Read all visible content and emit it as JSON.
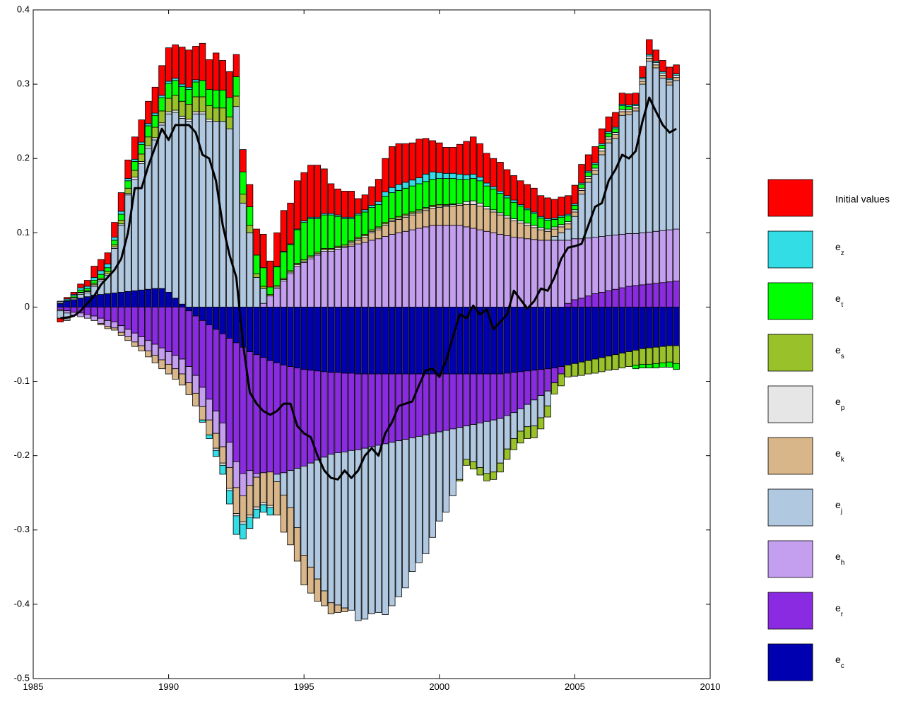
{
  "chart_data": {
    "type": "stacked-bar-line",
    "x": [
      1986,
      1986.25,
      1986.5,
      1986.75,
      1987,
      1987.25,
      1987.5,
      1987.75,
      1988,
      1988.25,
      1988.5,
      1988.75,
      1989,
      1989.25,
      1989.5,
      1989.75,
      1990,
      1990.25,
      1990.5,
      1990.75,
      1991,
      1991.25,
      1991.5,
      1991.75,
      1992,
      1992.25,
      1992.5,
      1992.75,
      1993,
      1993.25,
      1993.5,
      1993.75,
      1994,
      1994.25,
      1994.5,
      1994.75,
      1995,
      1995.25,
      1995.5,
      1995.75,
      1996,
      1996.25,
      1996.5,
      1996.75,
      1997,
      1997.25,
      1997.5,
      1997.75,
      1998,
      1998.25,
      1998.5,
      1998.75,
      1999,
      1999.25,
      1999.5,
      1999.75,
      2000,
      2000.25,
      2000.5,
      2000.75,
      2001,
      2001.25,
      2001.5,
      2001.75,
      2002,
      2002.25,
      2002.5,
      2002.75,
      2003,
      2003.25,
      2003.5,
      2003.75,
      2004,
      2004.25,
      2004.5,
      2004.75,
      2005,
      2005.25,
      2005.5,
      2005.75,
      2006,
      2006.25,
      2006.5,
      2006.75,
      2007,
      2007.25,
      2007.5,
      2007.75,
      2008,
      2008.25,
      2008.5,
      2008.75
    ],
    "series": [
      {
        "name": "Initial values",
        "color": "#ff0000",
        "values": [
          -0.005,
          0.002,
          0.003,
          0.005,
          0.008,
          0.015,
          0.015,
          0.015,
          0.02,
          0.025,
          0.025,
          0.03,
          0.03,
          0.03,
          0.035,
          0.04,
          0.045,
          0.045,
          0.05,
          0.05,
          0.045,
          0.05,
          0.04,
          0.05,
          0.04,
          0.035,
          0.03,
          0.03,
          0.03,
          0.035,
          0.045,
          0.035,
          0.045,
          0.055,
          0.055,
          0.065,
          0.065,
          0.07,
          0.07,
          0.06,
          0.04,
          0.035,
          0.035,
          0.035,
          0.02,
          0.02,
          0.025,
          0.03,
          0.045,
          0.055,
          0.055,
          0.052,
          0.05,
          0.052,
          0.048,
          0.042,
          0.04,
          0.035,
          0.035,
          0.04,
          0.045,
          0.05,
          0.045,
          0.04,
          0.038,
          0.039,
          0.035,
          0.033,
          0.032,
          0.032,
          0.032,
          0.028,
          0.028,
          0.025,
          0.025,
          0.025,
          0.025,
          0.025,
          0.022,
          0.022,
          0.02,
          0.02,
          0.02,
          0.015,
          0.015,
          0.015,
          0.015,
          0.02,
          0.015,
          0.015,
          0.015,
          0.012
        ]
      },
      {
        "name": "ez",
        "color": "#33dde6",
        "values": [
          0.001,
          0.002,
          0.002,
          0.003,
          0.003,
          0.004,
          0.005,
          0.005,
          0.004,
          0.004,
          0.003,
          0.003,
          0.003,
          0.003,
          0.003,
          0.003,
          0.003,
          0.003,
          0.003,
          0.003,
          0.003,
          -0.003,
          -0.005,
          -0.008,
          -0.012,
          -0.018,
          -0.025,
          -0.02,
          -0.015,
          -0.012,
          -0.01,
          -0.01,
          0.001,
          0.001,
          0.001,
          0.001,
          0.002,
          0.002,
          0.002,
          0.002,
          0.002,
          0.002,
          0.002,
          0.002,
          0.002,
          0.003,
          0.003,
          0.004,
          0.006,
          0.007,
          0.008,
          0.008,
          0.008,
          0.008,
          0.01,
          0.01,
          0.008,
          0.007,
          0.007,
          0.007,
          0.006,
          0.006,
          0.005,
          0.004,
          0.003,
          0.003,
          0.003,
          0.003,
          0.002,
          0.002,
          0.002,
          0.002,
          0.002,
          0.002,
          0.002,
          0.002,
          0.002,
          0.002,
          0.002,
          0.002,
          0.002,
          0.002,
          0.002,
          0.002,
          0.002,
          0.002,
          0.002,
          0.002,
          0.002,
          0.002,
          0.002,
          0.002
        ]
      },
      {
        "name": "eτ",
        "color": "#00ff00",
        "values": [
          0,
          0.001,
          0.002,
          0.003,
          0.003,
          0.004,
          0.005,
          0.005,
          0.006,
          0.008,
          0.01,
          0.012,
          0.013,
          0.015,
          0.016,
          0.018,
          0.02,
          0.02,
          0.02,
          0.02,
          0.02,
          0.022,
          0.022,
          0.024,
          0.024,
          0.026,
          0.026,
          0.03,
          0.025,
          0.025,
          0.025,
          0.01,
          0.025,
          0.035,
          0.035,
          0.045,
          0.05,
          0.05,
          0.045,
          0.045,
          0.045,
          0.04,
          0.035,
          0.03,
          0.03,
          0.03,
          0.03,
          0.03,
          0.035,
          0.035,
          0.035,
          0.035,
          0.035,
          0.035,
          0.035,
          0.035,
          0.035,
          0.035,
          0.034,
          0.033,
          0.03,
          0.03,
          0.03,
          0.028,
          0.028,
          0.026,
          0.024,
          0.022,
          0.02,
          0.018,
          0.016,
          0.013,
          0.012,
          0.01,
          0.01,
          0.008,
          0.006,
          0.005,
          0.005,
          0.005,
          0.005,
          0.005,
          0.005,
          0.005,
          0.004,
          -0.005,
          -0.005,
          -0.005,
          -0.006,
          -0.006,
          -0.007,
          -0.008
        ]
      },
      {
        "name": "es",
        "color": "#99c22a",
        "values": [
          0,
          0,
          0.001,
          0.001,
          0.001,
          0.002,
          0.002,
          0.003,
          0.003,
          0.005,
          0.007,
          0.009,
          0.01,
          0.012,
          0.014,
          0.016,
          0.018,
          0.02,
          0.02,
          0.02,
          0.02,
          0.02,
          0.018,
          0.018,
          0.018,
          0.016,
          0.014,
          0.012,
          0.01,
          0.005,
          0.003,
          0.002,
          0.002,
          0.002,
          0.002,
          0.002,
          0.002,
          0.002,
          0.002,
          0.002,
          0.002,
          0.002,
          0.002,
          0.002,
          0.002,
          0.002,
          0.002,
          0.002,
          0.002,
          0.002,
          0.002,
          0.002,
          0.002,
          0.002,
          0.002,
          0.002,
          0.002,
          0.001,
          0.001,
          -0.002,
          -0.008,
          -0.01,
          -0.01,
          -0.01,
          -0.01,
          -0.012,
          -0.014,
          -0.015,
          -0.016,
          -0.016,
          -0.016,
          -0.015,
          -0.015,
          -0.015,
          -0.016,
          -0.016,
          -0.017,
          -0.018,
          -0.018,
          -0.019,
          -0.019,
          -0.019,
          -0.02,
          -0.02,
          -0.02,
          -0.02,
          -0.021,
          -0.022,
          -0.022,
          -0.022,
          -0.022,
          -0.024
        ]
      },
      {
        "name": "ep",
        "color": "#e6e6e6",
        "values": [
          0.002,
          -0.002,
          0.002,
          0.002,
          0.002,
          0.002,
          0.002,
          0.002,
          0.002,
          0.002,
          0.002,
          0.003,
          0.003,
          0.003,
          0.003,
          0.003,
          0.003,
          0.003,
          0.003,
          0.003,
          0.003,
          0.003,
          0.003,
          -0.003,
          -0.003,
          -0.003,
          -0.003,
          -0.003,
          -0.003,
          -0.003,
          -0.003,
          -0.003,
          0.002,
          0.002,
          0.002,
          0.002,
          0.002,
          0.002,
          0.002,
          0.002,
          0.002,
          0.002,
          0.002,
          0.002,
          0.002,
          0.002,
          0.002,
          0.002,
          0.002,
          0.002,
          0.002,
          0.002,
          0.002,
          0.002,
          0.002,
          0.002,
          0.002,
          0.002,
          0.002,
          0.002,
          0.004,
          0.005,
          0.004,
          0.003,
          0.003,
          0.003,
          0.003,
          0.003,
          0.003,
          0.003,
          0.003,
          0.003,
          0.003,
          0.003,
          0.003,
          0.003,
          0.003,
          0.003,
          0.003,
          0.003,
          0.003,
          0.003,
          0.003,
          0.003,
          0.003,
          0.003,
          0.003,
          0.003,
          0.003,
          0.003,
          0.003,
          0.003
        ]
      },
      {
        "name": "ek",
        "color": "#d9b68a",
        "values": [
          0,
          0,
          0,
          0,
          0,
          0,
          -0.002,
          -0.003,
          -0.003,
          -0.004,
          -0.005,
          -0.006,
          -0.007,
          -0.008,
          -0.01,
          -0.012,
          -0.013,
          -0.014,
          -0.015,
          -0.016,
          -0.017,
          -0.018,
          -0.02,
          -0.02,
          -0.022,
          -0.028,
          -0.035,
          -0.035,
          -0.04,
          -0.04,
          -0.04,
          -0.045,
          -0.045,
          -0.05,
          -0.05,
          -0.045,
          -0.04,
          -0.035,
          -0.03,
          -0.02,
          -0.015,
          -0.01,
          -0.005,
          0.003,
          0.005,
          0.007,
          0.01,
          0.012,
          0.015,
          0.017,
          0.018,
          0.019,
          0.02,
          0.021,
          0.022,
          0.023,
          0.024,
          0.025,
          0.026,
          0.027,
          0.03,
          0.032,
          0.032,
          0.03,
          0.028,
          0.026,
          0.024,
          0.022,
          0.02,
          0.018,
          0.016,
          0.014,
          0.012,
          0.01,
          0.008,
          0.007,
          0.006,
          0.005,
          0.005,
          0.005,
          0.005,
          0.005,
          0.005,
          0.005,
          0.004,
          0.004,
          0.004,
          0.004,
          0.004,
          0.004,
          0.004,
          0.004
        ]
      },
      {
        "name": "ej",
        "color": "#b0c8e0",
        "values": [
          -0.01,
          -0.008,
          0,
          0.005,
          0.005,
          0.012,
          0.018,
          0.025,
          0.06,
          0.09,
          0.13,
          0.15,
          0.17,
          0.19,
          0.2,
          0.22,
          0.24,
          0.25,
          0.25,
          0.25,
          0.26,
          0.26,
          0.25,
          0.25,
          0.25,
          0.24,
          0.27,
          0.14,
          0.1,
          0.04,
          0.02,
          0,
          -0.01,
          -0.03,
          -0.05,
          -0.08,
          -0.12,
          -0.14,
          -0.16,
          -0.18,
          -0.2,
          -0.205,
          -0.21,
          -0.215,
          -0.23,
          -0.23,
          -0.225,
          -0.225,
          -0.23,
          -0.22,
          -0.21,
          -0.2,
          -0.18,
          -0.17,
          -0.16,
          -0.14,
          -0.12,
          -0.11,
          -0.09,
          -0.07,
          -0.045,
          -0.05,
          -0.06,
          -0.07,
          -0.07,
          -0.06,
          -0.045,
          -0.035,
          -0.03,
          -0.03,
          -0.035,
          -0.03,
          -0.02,
          0.005,
          0.01,
          0.015,
          0.03,
          0.06,
          0.075,
          0.085,
          0.11,
          0.125,
          0.13,
          0.16,
          0.16,
          0.165,
          0.2,
          0.23,
          0.22,
          0.205,
          0.195,
          0.2
        ]
      },
      {
        "name": "eh",
        "color": "#c49ff0",
        "values": [
          -0.002,
          -0.003,
          -0.004,
          -0.005,
          -0.005,
          -0.006,
          -0.007,
          -0.008,
          -0.008,
          -0.009,
          -0.01,
          -0.012,
          -0.012,
          -0.014,
          -0.015,
          -0.016,
          -0.017,
          -0.018,
          -0.02,
          -0.022,
          -0.024,
          -0.026,
          -0.028,
          -0.03,
          -0.032,
          -0.034,
          -0.035,
          -0.03,
          -0.02,
          -0.005,
          0.005,
          0.015,
          0.025,
          0.035,
          0.045,
          0.055,
          0.06,
          0.065,
          0.07,
          0.075,
          0.075,
          0.078,
          0.08,
          0.082,
          0.085,
          0.087,
          0.09,
          0.092,
          0.095,
          0.098,
          0.1,
          0.102,
          0.104,
          0.106,
          0.108,
          0.11,
          0.11,
          0.11,
          0.11,
          0.11,
          0.108,
          0.106,
          0.104,
          0.102,
          0.1,
          0.098,
          0.096,
          0.094,
          0.093,
          0.092,
          0.091,
          0.09,
          0.09,
          0.09,
          0.09,
          0.085,
          0.082,
          0.08,
          0.078,
          0.076,
          0.075,
          0.074,
          0.073,
          0.072,
          0.071,
          0.07,
          0.07,
          0.07,
          0.07,
          0.07,
          0.07,
          0.07
        ]
      },
      {
        "name": "er",
        "color": "#8a2be2",
        "values": [
          -0.003,
          -0.005,
          -0.007,
          -0.008,
          -0.01,
          -0.012,
          -0.015,
          -0.018,
          -0.02,
          -0.025,
          -0.03,
          -0.035,
          -0.04,
          -0.045,
          -0.05,
          -0.055,
          -0.06,
          -0.065,
          -0.07,
          -0.075,
          -0.08,
          -0.09,
          -0.1,
          -0.11,
          -0.12,
          -0.14,
          -0.16,
          -0.17,
          -0.16,
          -0.16,
          -0.155,
          -0.15,
          -0.15,
          -0.145,
          -0.14,
          -0.135,
          -0.13,
          -0.125,
          -0.12,
          -0.115,
          -0.11,
          -0.108,
          -0.106,
          -0.104,
          -0.102,
          -0.1,
          -0.098,
          -0.096,
          -0.094,
          -0.092,
          -0.09,
          -0.088,
          -0.086,
          -0.084,
          -0.082,
          -0.08,
          -0.078,
          -0.076,
          -0.074,
          -0.072,
          -0.07,
          -0.068,
          -0.066,
          -0.064,
          -0.062,
          -0.06,
          -0.057,
          -0.054,
          -0.05,
          -0.045,
          -0.04,
          -0.035,
          -0.03,
          -0.02,
          -0.01,
          0.005,
          0.01,
          0.012,
          0.015,
          0.018,
          0.02,
          0.022,
          0.024,
          0.026,
          0.028,
          0.029,
          0.03,
          0.031,
          0.032,
          0.033,
          0.034,
          0.035
        ]
      },
      {
        "name": "ec",
        "color": "#0000b0",
        "values": [
          0.005,
          0.008,
          0.01,
          0.012,
          0.014,
          0.016,
          0.017,
          0.018,
          0.019,
          0.02,
          0.021,
          0.022,
          0.023,
          0.024,
          0.025,
          0.025,
          0.02,
          0.012,
          0.004,
          -0.005,
          -0.012,
          -0.018,
          -0.024,
          -0.03,
          -0.036,
          -0.042,
          -0.048,
          -0.054,
          -0.06,
          -0.064,
          -0.068,
          -0.072,
          -0.075,
          -0.078,
          -0.08,
          -0.082,
          -0.084,
          -0.085,
          -0.086,
          -0.087,
          -0.088,
          -0.088,
          -0.089,
          -0.089,
          -0.09,
          -0.09,
          -0.09,
          -0.09,
          -0.09,
          -0.09,
          -0.09,
          -0.09,
          -0.09,
          -0.09,
          -0.09,
          -0.09,
          -0.09,
          -0.09,
          -0.09,
          -0.09,
          -0.09,
          -0.09,
          -0.09,
          -0.09,
          -0.09,
          -0.09,
          -0.089,
          -0.088,
          -0.087,
          -0.086,
          -0.085,
          -0.084,
          -0.083,
          -0.082,
          -0.08,
          -0.078,
          -0.076,
          -0.074,
          -0.072,
          -0.07,
          -0.068,
          -0.066,
          -0.064,
          -0.062,
          -0.06,
          -0.058,
          -0.056,
          -0.055,
          -0.054,
          -0.053,
          -0.052,
          -0.052
        ]
      }
    ],
    "line": {
      "color": "#000000",
      "values": [
        -0.015,
        -0.014,
        -0.012,
        -0.005,
        0.005,
        0.015,
        0.03,
        0.04,
        0.05,
        0.065,
        0.1,
        0.16,
        0.16,
        0.19,
        0.215,
        0.24,
        0.225,
        0.245,
        0.245,
        0.245,
        0.235,
        0.205,
        0.2,
        0.17,
        0.11,
        0.07,
        0.04,
        -0.05,
        -0.115,
        -0.13,
        -0.14,
        -0.145,
        -0.14,
        -0.13,
        -0.13,
        -0.16,
        -0.17,
        -0.175,
        -0.2,
        -0.22,
        -0.23,
        -0.232,
        -0.22,
        -0.23,
        -0.22,
        -0.2,
        -0.19,
        -0.2,
        -0.17,
        -0.155,
        -0.133,
        -0.13,
        -0.127,
        -0.105,
        -0.085,
        -0.083,
        -0.094,
        -0.072,
        -0.04,
        -0.01,
        -0.015,
        0.002,
        -0.01,
        -0.003,
        -0.03,
        -0.02,
        -0.01,
        0.022,
        0.01,
        -0.002,
        0.008,
        0.025,
        0.022,
        0.04,
        0.065,
        0.08,
        0.082,
        0.085,
        0.11,
        0.135,
        0.14,
        0.17,
        0.185,
        0.205,
        0.2,
        0.21,
        0.25,
        0.282,
        0.263,
        0.245,
        0.235,
        0.24
      ]
    },
    "xlim": [
      1985,
      2010
    ],
    "xticks": [
      1985,
      1990,
      1995,
      2000,
      2005,
      2010
    ],
    "ylim": [
      -0.5,
      0.4
    ],
    "yticks": [
      -0.5,
      -0.4,
      -0.3,
      -0.2,
      -0.1,
      0,
      0.1,
      0.2,
      0.3,
      0.4
    ],
    "grid": false,
    "legend": "right"
  }
}
